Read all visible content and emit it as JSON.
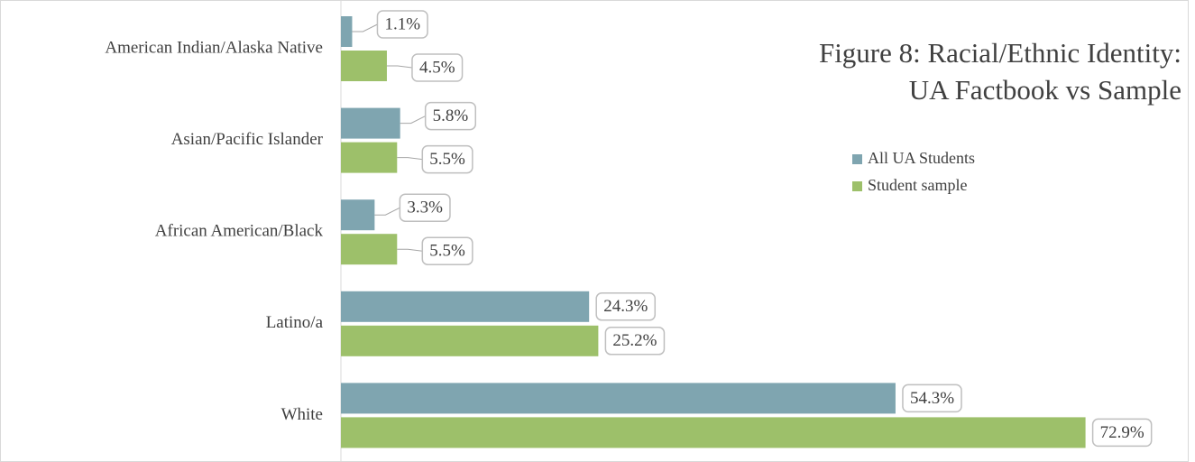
{
  "chart_data": {
    "type": "hbar",
    "title": [
      "Figure 8: Racial/Ethnic Identity:",
      "UA Factbook vs Sample"
    ],
    "categories": [
      "American Indian/Alaska Native",
      "Asian/Pacific Islander",
      "African American/Black",
      "Latino/a",
      "White"
    ],
    "series": [
      {
        "name": "All UA Students",
        "color": "#7fa5b0",
        "values": [
          1.1,
          5.8,
          3.3,
          24.3,
          54.3
        ],
        "value_labels": [
          "1.1%",
          "5.8%",
          "3.3%",
          "24.3%",
          "54.3%"
        ]
      },
      {
        "name": "Student sample",
        "color": "#9dc06a",
        "values": [
          4.5,
          5.5,
          5.5,
          25.2,
          72.9
        ],
        "value_labels": [
          "4.5%",
          "5.5%",
          "5.5%",
          "25.2%",
          "72.9%"
        ]
      }
    ],
    "xlim": [
      0,
      80
    ]
  }
}
